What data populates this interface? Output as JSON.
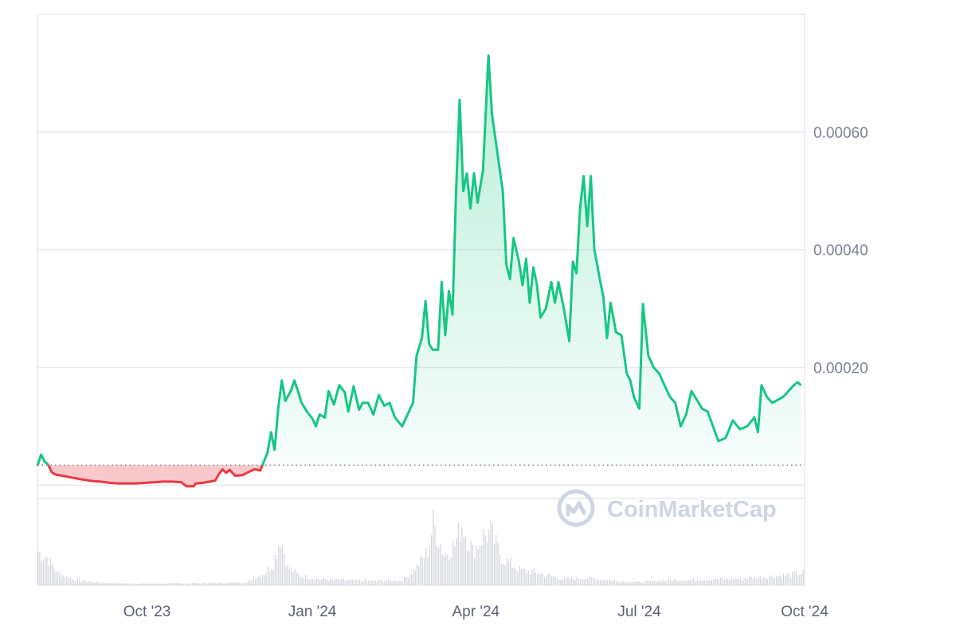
{
  "watermark": {
    "text": "CoinMarketCap"
  },
  "colors": {
    "up": "#16c784",
    "down": "#ea3943",
    "grid": "#e8eaef",
    "axis_text": "#7b8191",
    "volume": "#d4d7de",
    "baseline": "#7b8191"
  },
  "chart_data": {
    "type": "line",
    "baseline": 3.4e-05,
    "ylim": [
      -0.00017,
      0.0008
    ],
    "yticks": [
      {
        "value": 0.0006,
        "label": "0.00060"
      },
      {
        "value": 0.0004,
        "label": "0.00040"
      },
      {
        "value": 0.0002,
        "label": "0.00020"
      }
    ],
    "extra_gridlines": [
      0.0
    ],
    "xlim": [
      "2023-08-01",
      "2024-10-01"
    ],
    "xticks": [
      {
        "value": "2023-10-01",
        "label": "Oct '23"
      },
      {
        "value": "2024-01-01",
        "label": "Jan '24"
      },
      {
        "value": "2024-04-01",
        "label": "Apr '24"
      },
      {
        "value": "2024-07-01",
        "label": "Jul '24"
      },
      {
        "value": "2024-10-01",
        "label": "Oct '24"
      }
    ],
    "grid": true,
    "price": [
      [
        "2023-08-01",
        3.3e-05
      ],
      [
        "2023-08-03",
        5.2e-05
      ],
      [
        "2023-08-05",
        4e-05
      ],
      [
        "2023-08-07",
        3.5e-05
      ],
      [
        "2023-08-09",
        2.2e-05
      ],
      [
        "2023-08-11",
        1.8e-05
      ],
      [
        "2023-08-15",
        1.6e-05
      ],
      [
        "2023-08-20",
        1.3e-05
      ],
      [
        "2023-08-25",
        1e-05
      ],
      [
        "2023-09-01",
        7e-06
      ],
      [
        "2023-09-05",
        6e-06
      ],
      [
        "2023-09-10",
        4e-06
      ],
      [
        "2023-09-15",
        3e-06
      ],
      [
        "2023-09-20",
        3e-06
      ],
      [
        "2023-09-25",
        3e-06
      ],
      [
        "2023-09-30",
        4e-06
      ],
      [
        "2023-10-05",
        5e-06
      ],
      [
        "2023-10-10",
        6e-06
      ],
      [
        "2023-10-15",
        6e-06
      ],
      [
        "2023-10-20",
        5e-06
      ],
      [
        "2023-10-23",
        -2e-06
      ],
      [
        "2023-10-27",
        -2e-06
      ],
      [
        "2023-10-28",
        3e-06
      ],
      [
        "2023-11-01",
        4e-06
      ],
      [
        "2023-11-05",
        6e-06
      ],
      [
        "2023-11-08",
        8e-06
      ],
      [
        "2023-11-10",
        1.9e-05
      ],
      [
        "2023-11-12",
        2.7e-05
      ],
      [
        "2023-11-14",
        2.1e-05
      ],
      [
        "2023-11-16",
        2.6e-05
      ],
      [
        "2023-11-19",
        1.6e-05
      ],
      [
        "2023-11-23",
        1.7e-05
      ],
      [
        "2023-11-27",
        2.3e-05
      ],
      [
        "2023-11-30",
        2.7e-05
      ],
      [
        "2023-12-03",
        2.5e-05
      ],
      [
        "2023-12-05",
        4e-05
      ],
      [
        "2023-12-07",
        5.5e-05
      ],
      [
        "2023-12-09",
        9e-05
      ],
      [
        "2023-12-11",
        6e-05
      ],
      [
        "2023-12-13",
        0.00013
      ],
      [
        "2023-12-15",
        0.000178
      ],
      [
        "2023-12-17",
        0.000143
      ],
      [
        "2023-12-20",
        0.00016
      ],
      [
        "2023-12-22",
        0.000178
      ],
      [
        "2023-12-24",
        0.00016
      ],
      [
        "2023-12-26",
        0.00014
      ],
      [
        "2023-12-29",
        0.000125
      ],
      [
        "2024-01-01",
        0.000113
      ],
      [
        "2024-01-03",
        0.0001
      ],
      [
        "2024-01-05",
        0.00012
      ],
      [
        "2024-01-08",
        0.000115
      ],
      [
        "2024-01-10",
        0.00016
      ],
      [
        "2024-01-13",
        0.000137
      ],
      [
        "2024-01-16",
        0.00017
      ],
      [
        "2024-01-19",
        0.000158
      ],
      [
        "2024-01-21",
        0.000125
      ],
      [
        "2024-01-24",
        0.000168
      ],
      [
        "2024-01-27",
        0.000128
      ],
      [
        "2024-01-29",
        0.00014
      ],
      [
        "2024-02-01",
        0.00014
      ],
      [
        "2024-02-04",
        0.00012
      ],
      [
        "2024-02-07",
        0.000153
      ],
      [
        "2024-02-10",
        0.000135
      ],
      [
        "2024-02-13",
        0.00014
      ],
      [
        "2024-02-16",
        0.000115
      ],
      [
        "2024-02-20",
        0.0001
      ],
      [
        "2024-02-23",
        0.00012
      ],
      [
        "2024-02-26",
        0.00014
      ],
      [
        "2024-02-28",
        0.00022
      ],
      [
        "2024-03-02",
        0.00025
      ],
      [
        "2024-03-04",
        0.000313
      ],
      [
        "2024-03-06",
        0.00024
      ],
      [
        "2024-03-08",
        0.00023
      ],
      [
        "2024-03-11",
        0.00023
      ],
      [
        "2024-03-13",
        0.000345
      ],
      [
        "2024-03-15",
        0.000255
      ],
      [
        "2024-03-17",
        0.00033
      ],
      [
        "2024-03-19",
        0.00029
      ],
      [
        "2024-03-21",
        0.0005
      ],
      [
        "2024-03-23",
        0.000655
      ],
      [
        "2024-03-25",
        0.0005
      ],
      [
        "2024-03-27",
        0.00053
      ],
      [
        "2024-03-29",
        0.00047
      ],
      [
        "2024-03-31",
        0.00053
      ],
      [
        "2024-04-02",
        0.00048
      ],
      [
        "2024-04-05",
        0.000535
      ],
      [
        "2024-04-08",
        0.00073
      ],
      [
        "2024-04-10",
        0.00063
      ],
      [
        "2024-04-13",
        0.000565
      ],
      [
        "2024-04-16",
        0.0005
      ],
      [
        "2024-04-18",
        0.000375
      ],
      [
        "2024-04-20",
        0.00035
      ],
      [
        "2024-04-22",
        0.00042
      ],
      [
        "2024-04-25",
        0.00038
      ],
      [
        "2024-04-27",
        0.00034
      ],
      [
        "2024-04-29",
        0.000385
      ],
      [
        "2024-05-01",
        0.00031
      ],
      [
        "2024-05-03",
        0.00037
      ],
      [
        "2024-05-05",
        0.00034
      ],
      [
        "2024-05-07",
        0.000285
      ],
      [
        "2024-05-10",
        0.0003
      ],
      [
        "2024-05-13",
        0.000345
      ],
      [
        "2024-05-15",
        0.00031
      ],
      [
        "2024-05-17",
        0.000345
      ],
      [
        "2024-05-20",
        0.0003
      ],
      [
        "2024-05-23",
        0.000245
      ],
      [
        "2024-05-25",
        0.00038
      ],
      [
        "2024-05-27",
        0.00036
      ],
      [
        "2024-05-29",
        0.00047
      ],
      [
        "2024-05-31",
        0.000525
      ],
      [
        "2024-06-02",
        0.00044
      ],
      [
        "2024-06-04",
        0.000525
      ],
      [
        "2024-06-06",
        0.0004
      ],
      [
        "2024-06-09",
        0.00035
      ],
      [
        "2024-06-11",
        0.00032
      ],
      [
        "2024-06-13",
        0.00025
      ],
      [
        "2024-06-15",
        0.00031
      ],
      [
        "2024-06-18",
        0.00026
      ],
      [
        "2024-06-21",
        0.000255
      ],
      [
        "2024-06-24",
        0.00019
      ],
      [
        "2024-06-26",
        0.000178
      ],
      [
        "2024-06-28",
        0.00015
      ],
      [
        "2024-07-01",
        0.00013
      ],
      [
        "2024-07-03",
        0.000308
      ],
      [
        "2024-07-06",
        0.00022
      ],
      [
        "2024-07-09",
        0.0002
      ],
      [
        "2024-07-12",
        0.00019
      ],
      [
        "2024-07-15",
        0.00017
      ],
      [
        "2024-07-18",
        0.00015
      ],
      [
        "2024-07-21",
        0.00014
      ],
      [
        "2024-07-24",
        0.0001
      ],
      [
        "2024-07-27",
        0.00012
      ],
      [
        "2024-07-30",
        0.00016
      ],
      [
        "2024-08-02",
        0.000145
      ],
      [
        "2024-08-05",
        0.00013
      ],
      [
        "2024-08-08",
        0.000125
      ],
      [
        "2024-08-11",
        0.0001
      ],
      [
        "2024-08-14",
        7.5e-05
      ],
      [
        "2024-08-18",
        8e-05
      ],
      [
        "2024-08-22",
        0.00011
      ],
      [
        "2024-08-26",
        9.5e-05
      ],
      [
        "2024-08-30",
        0.0001
      ],
      [
        "2024-09-03",
        0.000115
      ],
      [
        "2024-09-05",
        9e-05
      ],
      [
        "2024-09-07",
        0.00017
      ],
      [
        "2024-09-10",
        0.00015
      ],
      [
        "2024-09-13",
        0.00014
      ],
      [
        "2024-09-16",
        0.000145
      ],
      [
        "2024-09-19",
        0.00015
      ],
      [
        "2024-09-22",
        0.00016
      ],
      [
        "2024-09-25",
        0.00017
      ],
      [
        "2024-09-27",
        0.000175
      ],
      [
        "2024-09-29",
        0.00017
      ]
    ],
    "volume": [
      [
        "2023-08-01",
        0.55
      ],
      [
        "2023-08-06",
        0.45
      ],
      [
        "2023-08-12",
        0.2
      ],
      [
        "2023-08-20",
        0.1
      ],
      [
        "2023-09-01",
        0.05
      ],
      [
        "2023-09-20",
        0.03
      ],
      [
        "2023-10-15",
        0.03
      ],
      [
        "2023-11-10",
        0.04
      ],
      [
        "2023-11-25",
        0.05
      ],
      [
        "2023-12-05",
        0.2
      ],
      [
        "2023-12-10",
        0.35
      ],
      [
        "2023-12-14",
        0.78
      ],
      [
        "2023-12-18",
        0.3
      ],
      [
        "2023-12-25",
        0.15
      ],
      [
        "2024-01-05",
        0.1
      ],
      [
        "2024-01-20",
        0.08
      ],
      [
        "2024-02-05",
        0.07
      ],
      [
        "2024-02-20",
        0.08
      ],
      [
        "2024-02-28",
        0.3
      ],
      [
        "2024-03-05",
        0.55
      ],
      [
        "2024-03-08",
        1.0
      ],
      [
        "2024-03-14",
        0.5
      ],
      [
        "2024-03-20",
        0.65
      ],
      [
        "2024-03-24",
        1.0
      ],
      [
        "2024-03-30",
        0.55
      ],
      [
        "2024-04-05",
        0.8
      ],
      [
        "2024-04-09",
        0.85
      ],
      [
        "2024-04-15",
        0.45
      ],
      [
        "2024-04-25",
        0.25
      ],
      [
        "2024-05-05",
        0.2
      ],
      [
        "2024-05-20",
        0.1
      ],
      [
        "2024-06-01",
        0.12
      ],
      [
        "2024-06-15",
        0.08
      ],
      [
        "2024-07-01",
        0.05
      ],
      [
        "2024-07-15",
        0.08
      ],
      [
        "2024-08-05",
        0.1
      ],
      [
        "2024-08-20",
        0.1
      ],
      [
        "2024-09-05",
        0.13
      ],
      [
        "2024-09-20",
        0.16
      ],
      [
        "2024-09-30",
        0.2
      ]
    ]
  }
}
